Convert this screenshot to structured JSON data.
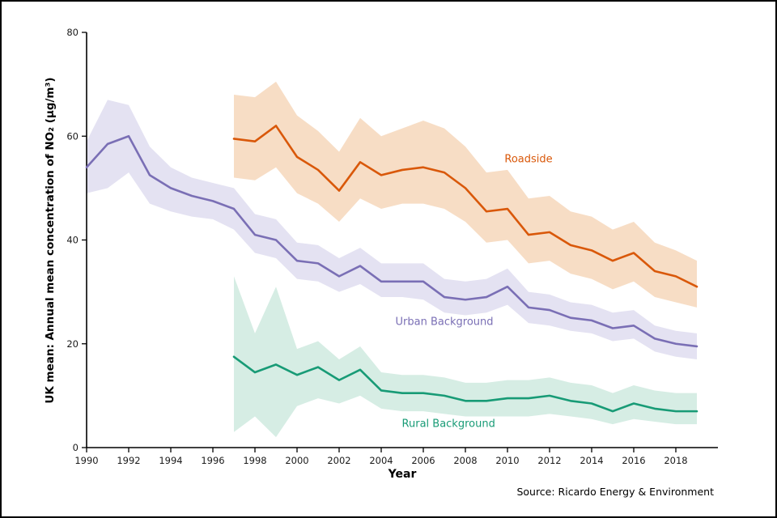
{
  "chart_data": {
    "type": "line",
    "title": "",
    "xlabel": "Year",
    "ylabel": "UK mean: Annual mean concentration of NO₂ (µg/m³)",
    "source": "Source: Ricardo Energy & Environment",
    "xlim": [
      1990,
      2020
    ],
    "ylim": [
      0,
      80
    ],
    "xticks": [
      1990,
      1992,
      1994,
      1996,
      1998,
      2000,
      2002,
      2004,
      2006,
      2008,
      2010,
      2012,
      2014,
      2016,
      2018
    ],
    "yticks": [
      0,
      20,
      40,
      60,
      80
    ],
    "grid": false,
    "legend": "inline-labels",
    "series": [
      {
        "id": "roadside",
        "name": "Roadside",
        "color": "#d9580a",
        "band_color": "#f7ddc5",
        "label_pos": {
          "x": 2011,
          "y": 55.5
        },
        "x": [
          1997,
          1998,
          1999,
          2000,
          2001,
          2002,
          2003,
          2004,
          2005,
          2006,
          2007,
          2008,
          2009,
          2010,
          2011,
          2012,
          2013,
          2014,
          2015,
          2016,
          2017,
          2018,
          2019
        ],
        "values": [
          59.5,
          59,
          62,
          56,
          53.5,
          49.5,
          55,
          52.5,
          53.5,
          54,
          53,
          50,
          45.5,
          46,
          41,
          41.5,
          39,
          38,
          36,
          37.5,
          34,
          33,
          31
        ],
        "band_upper": [
          68,
          67.5,
          70.5,
          64,
          61,
          57,
          63.5,
          60,
          61.5,
          63,
          61.5,
          58,
          53,
          53.5,
          48,
          48.5,
          45.5,
          44.5,
          42,
          43.5,
          39.5,
          38,
          36
        ],
        "band_lower": [
          52,
          51.5,
          54,
          49,
          47,
          43.5,
          48,
          46,
          47,
          47,
          46,
          43.5,
          39.5,
          40,
          35.5,
          36,
          33.5,
          32.5,
          30.5,
          32,
          29,
          28,
          27
        ]
      },
      {
        "id": "urban",
        "name": "Urban Background",
        "color": "#7a6fb5",
        "band_color": "#e4e2f2",
        "label_pos": {
          "x": 2007,
          "y": 24.2
        },
        "x": [
          1990,
          1991,
          1992,
          1993,
          1994,
          1995,
          1996,
          1997,
          1998,
          1999,
          2000,
          2001,
          2002,
          2003,
          2004,
          2005,
          2006,
          2007,
          2008,
          2009,
          2010,
          2011,
          2012,
          2013,
          2014,
          2015,
          2016,
          2017,
          2018,
          2019
        ],
        "values": [
          54,
          58.5,
          60,
          52.5,
          50,
          48.5,
          47.5,
          46,
          41,
          40,
          36,
          35.5,
          33,
          35,
          32,
          32,
          32,
          29,
          28.5,
          29,
          31,
          27,
          26.5,
          25,
          24.5,
          23,
          23.5,
          21,
          20,
          19.5
        ],
        "band_upper": [
          59,
          67,
          66,
          58,
          54,
          52,
          51,
          50,
          45,
          44,
          39.5,
          39,
          36.5,
          38.5,
          35.5,
          35.5,
          35.5,
          32.5,
          32,
          32.5,
          34.5,
          30,
          29.5,
          28,
          27.5,
          26,
          26.5,
          23.5,
          22.5,
          22
        ],
        "band_lower": [
          49,
          50,
          53,
          47,
          45.5,
          44.5,
          44,
          42,
          37.5,
          36.5,
          32.5,
          32,
          30,
          31.5,
          29,
          29,
          28.5,
          26,
          25.5,
          26,
          27.5,
          24,
          23.5,
          22.5,
          22,
          20.5,
          21,
          18.5,
          17.5,
          17
        ]
      },
      {
        "id": "rural",
        "name": "Rural Background",
        "color": "#189b76",
        "band_color": "#d6ede4",
        "label_pos": {
          "x": 2007.2,
          "y": 4.6
        },
        "x": [
          1997,
          1998,
          1999,
          2000,
          2001,
          2002,
          2003,
          2004,
          2005,
          2006,
          2007,
          2008,
          2009,
          2010,
          2011,
          2012,
          2013,
          2014,
          2015,
          2016,
          2017,
          2018,
          2019
        ],
        "values": [
          17.5,
          14.5,
          16,
          14,
          15.5,
          13,
          15,
          11,
          10.5,
          10.5,
          10,
          9,
          9,
          9.5,
          9.5,
          10,
          9,
          8.5,
          7,
          8.5,
          7.5,
          7,
          7
        ],
        "band_upper": [
          33,
          22,
          31,
          19,
          20.5,
          17,
          19.5,
          14.5,
          14,
          14,
          13.5,
          12.5,
          12.5,
          13,
          13,
          13.5,
          12.5,
          12,
          10.5,
          12,
          11,
          10.5,
          10.5
        ],
        "band_lower": [
          3,
          6,
          2,
          8,
          9.5,
          8.5,
          10,
          7.5,
          7,
          7,
          6.5,
          6,
          6,
          6,
          6,
          6.5,
          6,
          5.5,
          4.5,
          5.5,
          5,
          4.5,
          4.5
        ]
      }
    ]
  }
}
